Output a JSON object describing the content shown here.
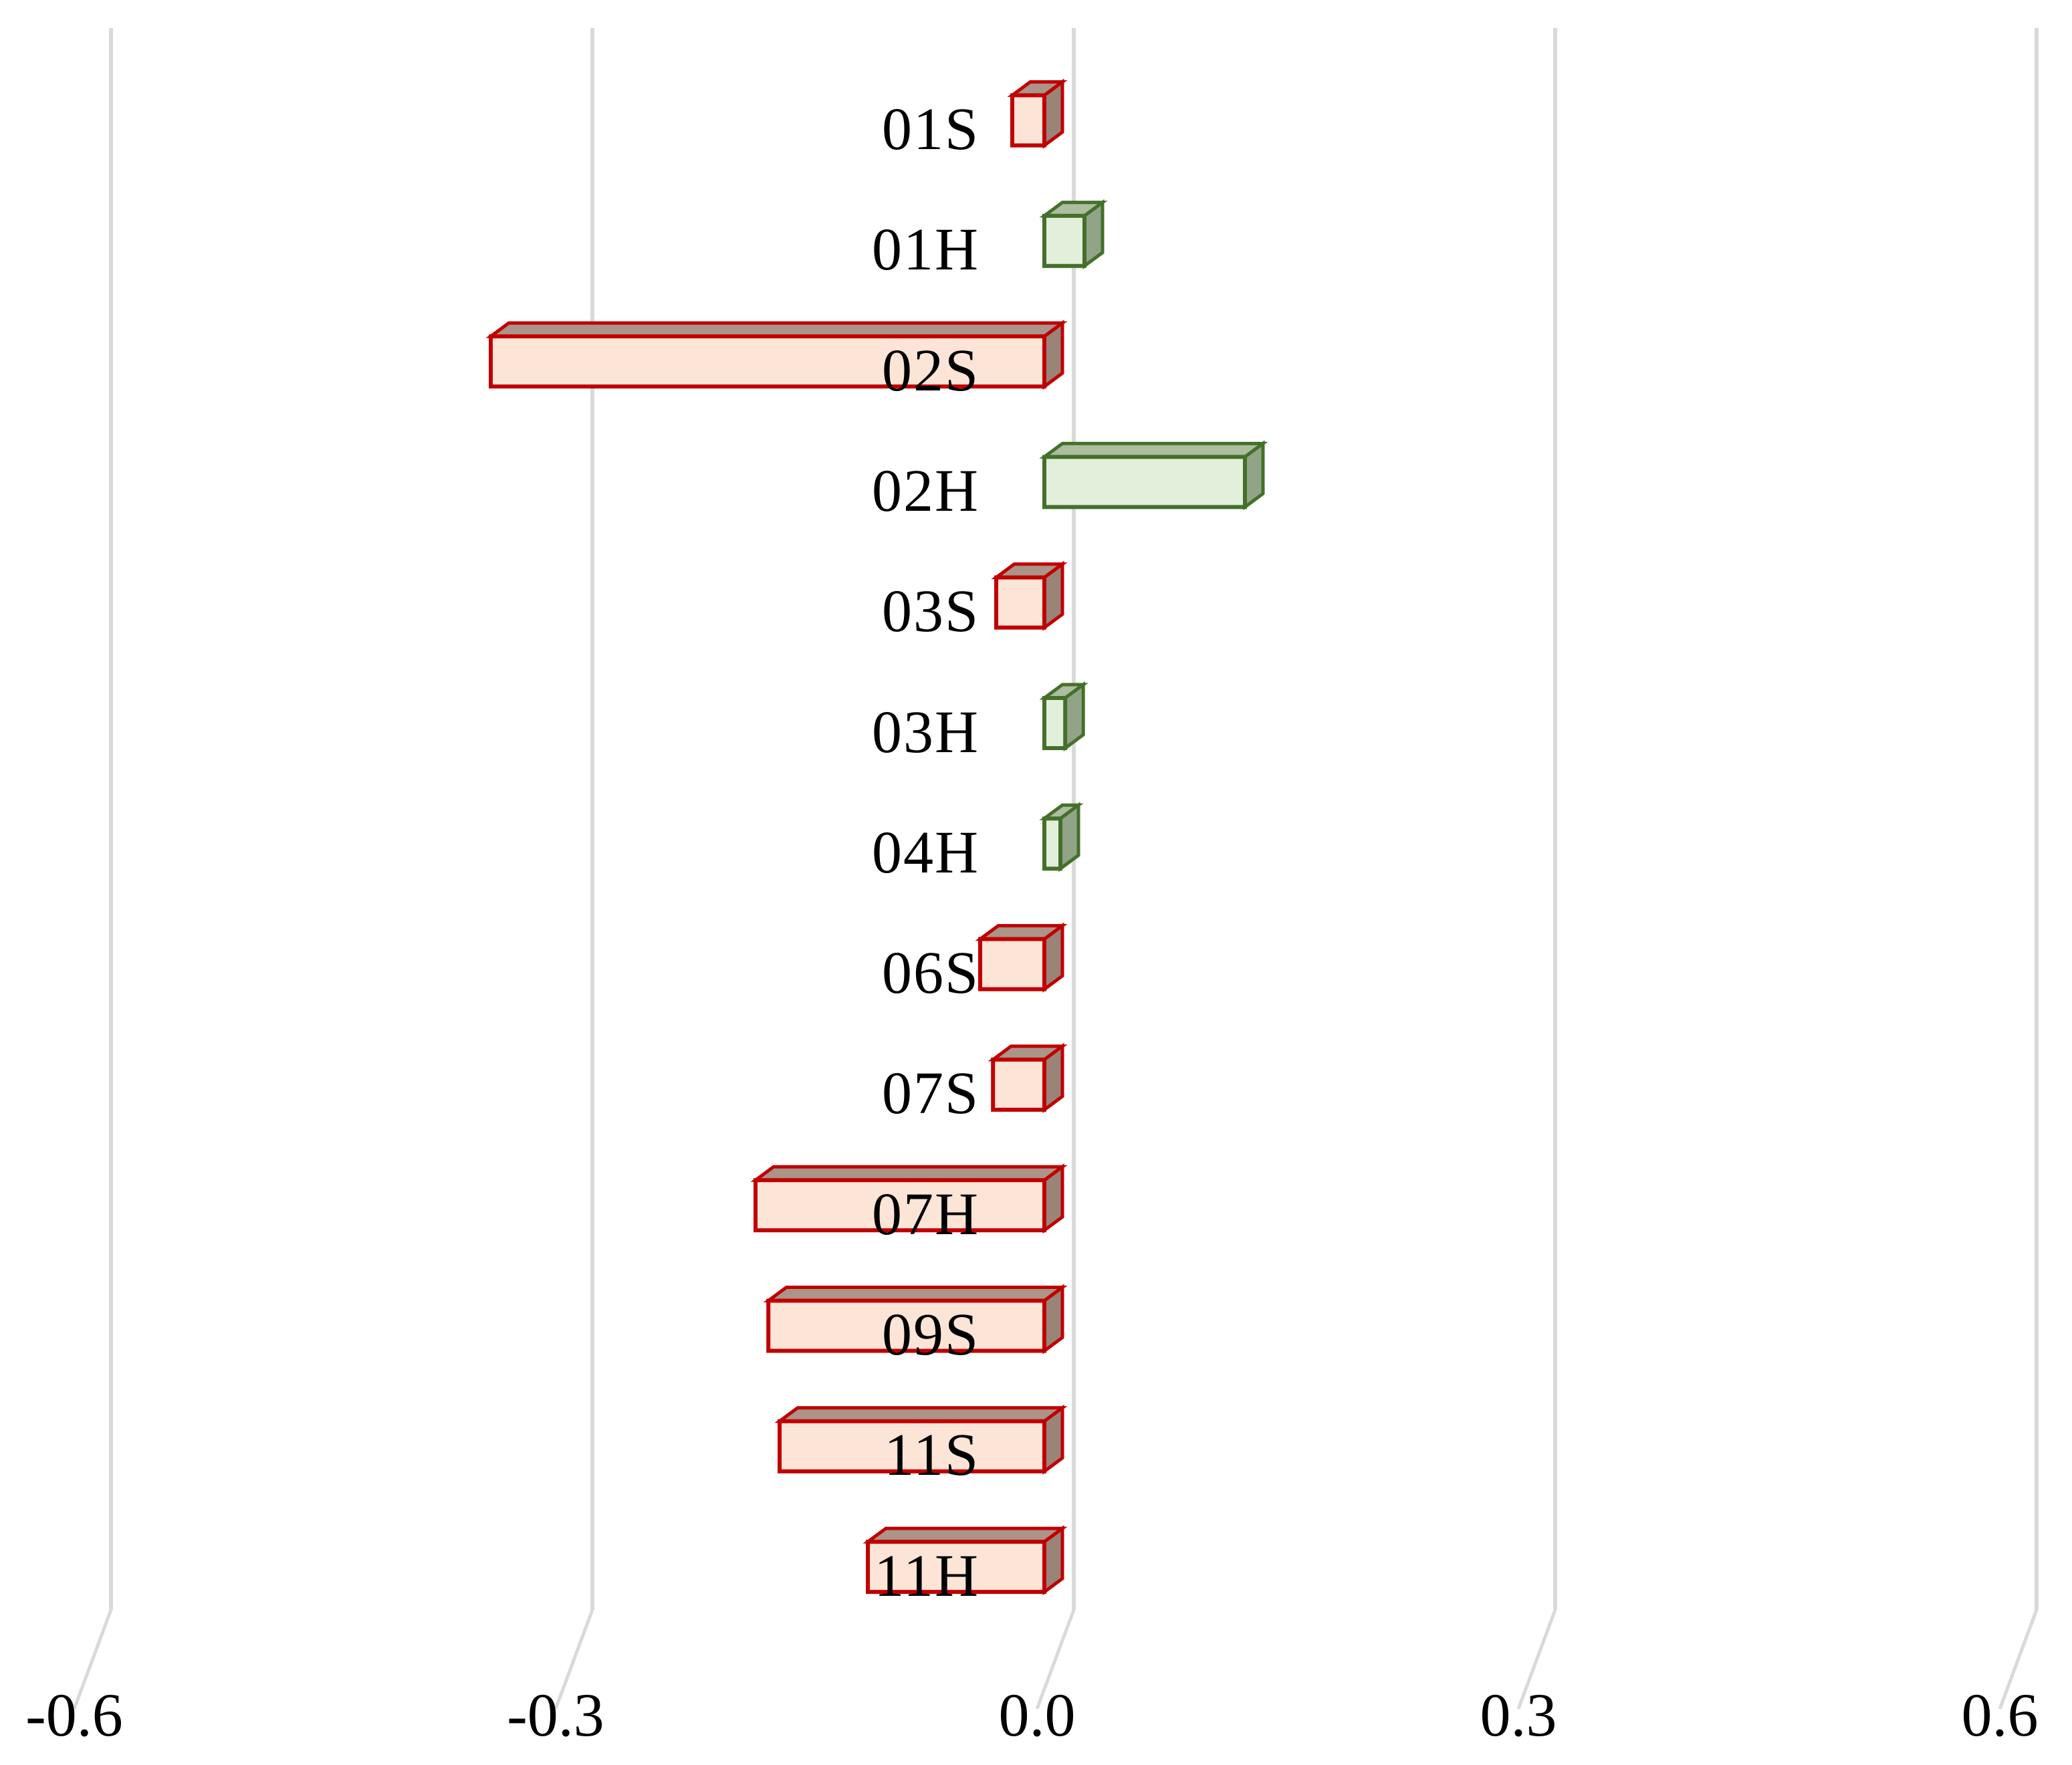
{
  "page": {
    "background": "#FFFFFF"
  },
  "chart_data": {
    "type": "bar",
    "orientation": "horizontal",
    "style": "3d-prism",
    "title": "",
    "xlabel": "",
    "ylabel": "",
    "legend": false,
    "grid": true,
    "xlim": [
      -0.6,
      0.6
    ],
    "x_ticks": [
      "-0.6",
      "-0.3",
      "0.0",
      "0.3",
      "0.6"
    ],
    "x_tick_values": [
      -0.6,
      -0.3,
      0.0,
      0.3,
      0.6
    ],
    "categories": [
      "01S",
      "01H",
      "02S",
      "02H",
      "03S",
      "03H",
      "04H",
      "06S",
      "07S",
      "07H",
      "09S",
      "11S",
      "11H"
    ],
    "values": [
      -0.02,
      0.025,
      -0.345,
      0.125,
      -0.03,
      0.013,
      0.01,
      -0.04,
      -0.032,
      -0.18,
      -0.172,
      -0.165,
      -0.11
    ],
    "colors": {
      "negative_fill": "#FCE4D6",
      "negative_border": "#C00000",
      "negative_top": "#AB9488",
      "negative_side": "#9A8478",
      "positive_fill": "#E2EFDA",
      "positive_border": "#44702A",
      "positive_top": "#ACBDA0",
      "positive_side": "#92A488",
      "gridline": "#D9D9D9",
      "text": "#000000",
      "background": "#FFFFFF"
    }
  }
}
